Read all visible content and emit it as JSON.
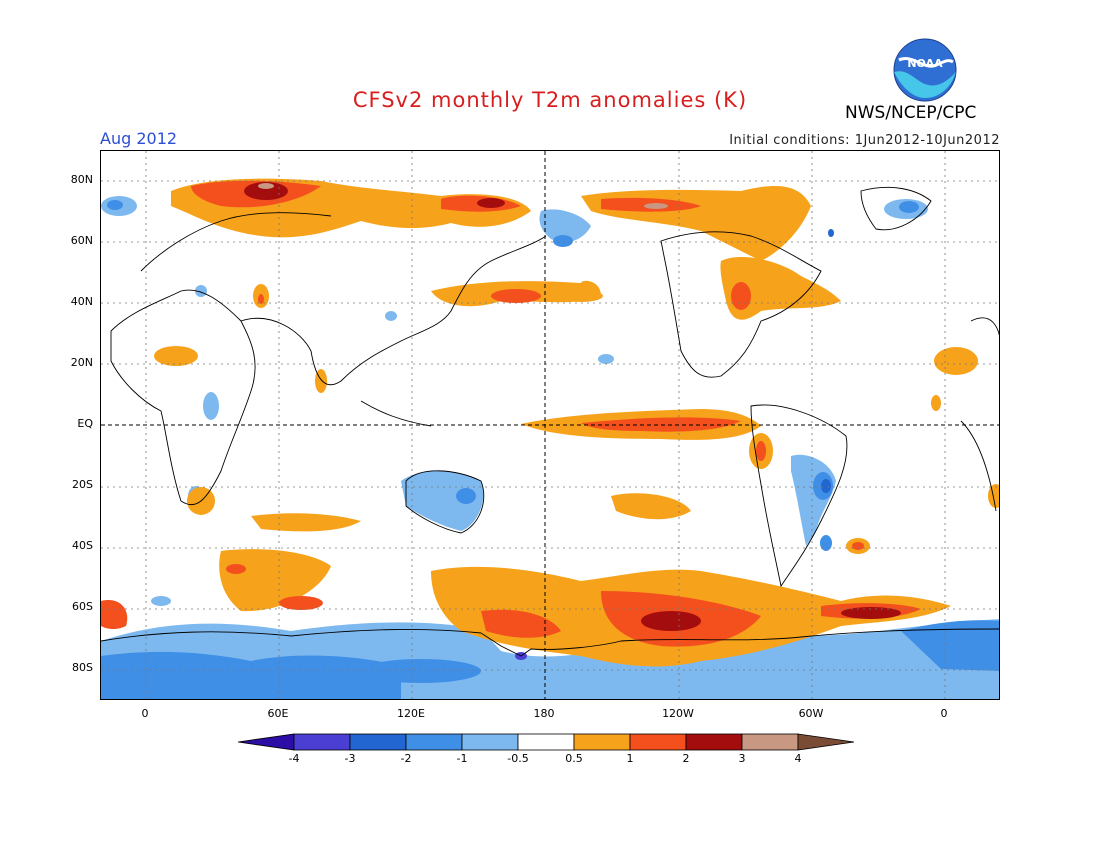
{
  "title": "CFSv2 monthly T2m anomalies (K)",
  "agency": "NWS/NCEP/CPC",
  "logo_text": "NOAA",
  "valid_month": "Aug 2012",
  "initial_conditions": "Initial conditions: 1Jun2012-10Jun2012",
  "lat_labels": [
    "80N",
    "60N",
    "40N",
    "20N",
    "EQ",
    "20S",
    "40S",
    "60S",
    "80S"
  ],
  "lon_labels": [
    "0",
    "60E",
    "120E",
    "180",
    "120W",
    "60W",
    "0"
  ],
  "colorbar": {
    "labels": [
      "-4",
      "-3",
      "-2",
      "-1",
      "-0.5",
      "0.5",
      "1",
      "2",
      "3",
      "4"
    ],
    "colors": [
      "#2c0ea6",
      "#4b3fd3",
      "#2266d2",
      "#3f8fe6",
      "#7db9ef",
      "#ffffff",
      "#f7a21b",
      "#f4501d",
      "#a40d0d",
      "#c99882",
      "#7a4c36"
    ]
  },
  "colors": {
    "cool_light": "#7db9ef",
    "cool_mid": "#3f8fe6",
    "cool_strong": "#2266d2",
    "warm_light": "#f7a21b",
    "warm_mid": "#f4501d",
    "warm_strong": "#a40d0d",
    "warm_extreme": "#c99882",
    "title": "#d81e1e",
    "month": "#2d4fd6"
  }
}
